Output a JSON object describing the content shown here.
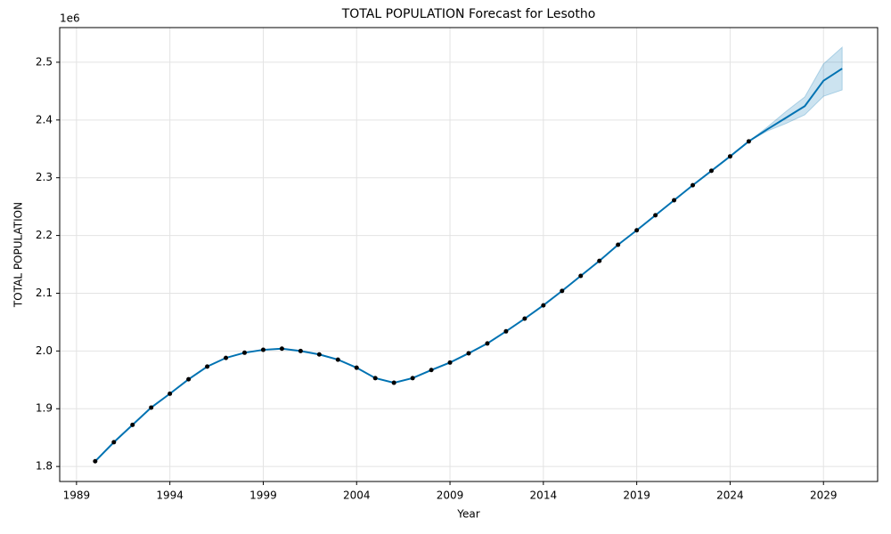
{
  "chart_data": {
    "type": "forecast",
    "title": "TOTAL POPULATION Forecast for Lesotho",
    "x_label": "Year",
    "y_label": "TOTAL POPULATION",
    "y_offset_label": "1e6",
    "x": [
      1990,
      1991,
      1992,
      1993,
      1994,
      1995,
      1996,
      1997,
      1998,
      1999,
      2000,
      2001,
      2002,
      2003,
      2004,
      2005,
      2006,
      2007,
      2008,
      2009,
      2010,
      2011,
      2012,
      2013,
      2014,
      2015,
      2016,
      2017,
      2018,
      2019,
      2020,
      2021,
      2022,
      2023,
      2024,
      2025,
      2026,
      2027,
      2028,
      2029,
      2030
    ],
    "observed": [
      1.809,
      1.842,
      1.872,
      1.902,
      1.926,
      1.951,
      1.973,
      1.988,
      1.997,
      2.002,
      2.004,
      2.0,
      1.994,
      1.985,
      1.971,
      1.953,
      1.945,
      1.953,
      1.967,
      1.98,
      1.996,
      2.013,
      2.034,
      2.056,
      2.079,
      2.104,
      2.13,
      2.156,
      2.184,
      2.209,
      2.235,
      2.261,
      2.287,
      2.312,
      2.337,
      2.363,
      null,
      null,
      null,
      null,
      null
    ],
    "fit": [
      1.809,
      1.842,
      1.872,
      1.902,
      1.926,
      1.951,
      1.973,
      1.988,
      1.997,
      2.002,
      2.004,
      2.0,
      1.994,
      1.985,
      1.971,
      1.953,
      1.945,
      1.953,
      1.967,
      1.98,
      1.996,
      2.013,
      2.034,
      2.056,
      2.079,
      2.104,
      2.13,
      2.156,
      2.184,
      2.209,
      2.235,
      2.261,
      2.287,
      2.312,
      2.337,
      2.363,
      2.384,
      2.404,
      2.424,
      2.468,
      2.489
    ],
    "lower": [
      null,
      null,
      null,
      null,
      null,
      null,
      null,
      null,
      null,
      null,
      null,
      null,
      null,
      null,
      null,
      null,
      null,
      null,
      null,
      null,
      null,
      null,
      null,
      null,
      null,
      null,
      null,
      null,
      null,
      null,
      null,
      null,
      null,
      null,
      null,
      2.363,
      2.381,
      2.394,
      2.409,
      2.441,
      2.452
    ],
    "upper": [
      null,
      null,
      null,
      null,
      null,
      null,
      null,
      null,
      null,
      null,
      null,
      null,
      null,
      null,
      null,
      null,
      null,
      null,
      null,
      null,
      null,
      null,
      null,
      null,
      null,
      null,
      null,
      null,
      null,
      null,
      null,
      null,
      null,
      null,
      null,
      2.363,
      2.388,
      2.415,
      2.44,
      2.497,
      2.526
    ],
    "line_color": "#0072b2",
    "point_color": "#000000",
    "band_color": "#0072b2",
    "xlim": [
      1988.1,
      2031.9
    ],
    "ylim": [
      1.774,
      2.56
    ],
    "xticks": [
      1989,
      1994,
      1999,
      2004,
      2009,
      2014,
      2019,
      2024,
      2029
    ],
    "yticks": [
      1.8,
      1.9,
      {
        "value": 2,
        "label": "2.0"
      },
      2.1,
      2.2,
      2.3,
      2.4,
      2.5
    ],
    "grid": true
  }
}
